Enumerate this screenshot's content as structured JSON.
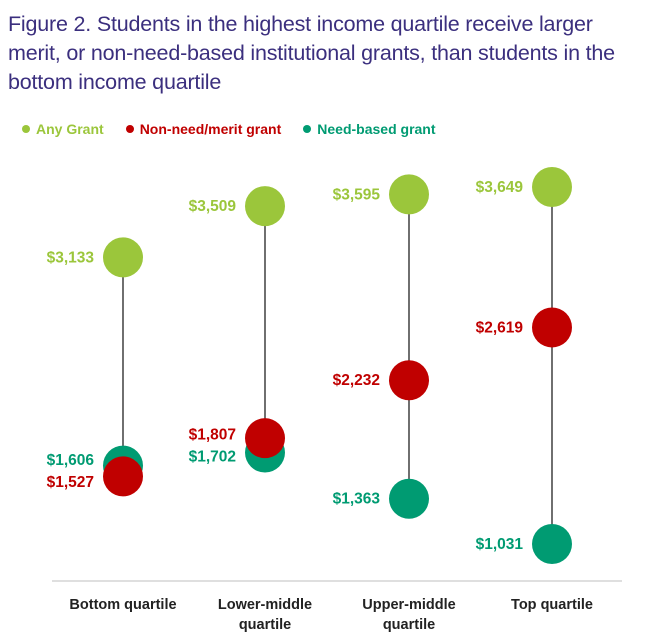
{
  "title": "Figure 2. Students in the highest income quartile receive larger merit, or non-need-based institutional grants, than students in the bottom income quartile",
  "colors": {
    "any": "#9bc63b",
    "merit": "#c00000",
    "need": "#009b72",
    "title": "#3b2f7e",
    "stem": "#222222",
    "axis": "#bfbfbf"
  },
  "chart_data": {
    "type": "dumbbell",
    "title": "Figure 2. Students in the highest income quartile receive larger merit, or non-need-based institutional grants, than students in the bottom income quartile",
    "categories": [
      [
        "Bottom quartile"
      ],
      [
        "Lower-middle",
        "quartile"
      ],
      [
        "Upper-middle",
        "quartile"
      ],
      [
        "Top quartile"
      ]
    ],
    "series": [
      {
        "name": "Any Grant",
        "values": [
          3133,
          3509,
          3595,
          3649
        ],
        "labels": [
          "$3,133",
          "$3,509",
          "$3,595",
          "$3,649"
        ]
      },
      {
        "name": "Non-need/merit grant",
        "values": [
          1527,
          1807,
          2232,
          2619
        ],
        "labels": [
          "$1,527",
          "$1,807",
          "$2,232",
          "$2,619"
        ]
      },
      {
        "name": "Need-based grant",
        "values": [
          1606,
          1702,
          1363,
          1031
        ],
        "labels": [
          "$1,606",
          "$1,702",
          "$1,363",
          "$1,031"
        ]
      }
    ],
    "legend_position": "top-left",
    "grid": false
  }
}
